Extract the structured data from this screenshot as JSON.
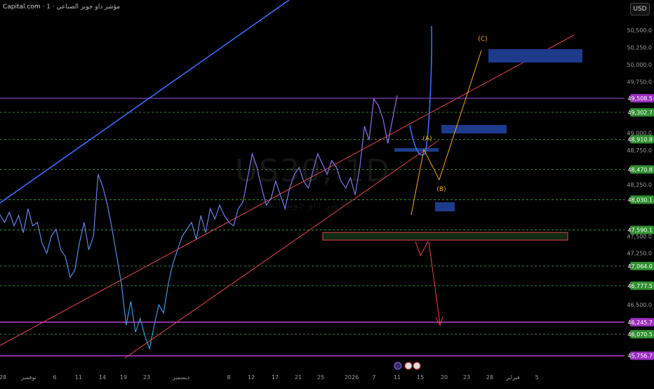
{
  "header": {
    "brand": "Capital.com",
    "subtitle": "1 · مؤشر داو جونز الصناعي"
  },
  "currency_button": "USD",
  "watermark": {
    "symbol": "US30, 1D",
    "name": "مؤشر داو جونز الصناعي"
  },
  "colors": {
    "background": "#000000",
    "price_line": "#7b6cf0",
    "channel_red": "#e0454e",
    "trend_blue": "#3d6bff",
    "wave_orange": "#f5a623",
    "zone_blue": "#1e3a8a",
    "guide_green": "#3fa63f",
    "level_purple": "#b03cc8"
  },
  "chart_data": {
    "type": "line",
    "title": "",
    "xlabel": "",
    "ylabel": "",
    "ylim": [
      45650,
      50750
    ],
    "grid": false,
    "legend": "none",
    "x_tick_labels": [
      "28",
      "نوفمبر",
      "6",
      "11",
      "14",
      "19",
      "23",
      "ديسمبر",
      "8",
      "12",
      "17",
      "21",
      "25",
      "2026",
      "7",
      "11",
      "15",
      "20",
      "23",
      "28",
      "فبراير",
      "5"
    ],
    "y_tick_labels": [
      "50,500.0",
      "50,250.0",
      "50,000.0",
      "49,750.0",
      "49,000.0",
      "48,750.0",
      "48,250.0",
      "47,500.0",
      "47,250.0",
      "46,500.0"
    ],
    "price_labels": [
      {
        "value": 49508.5,
        "text": "49,508.5",
        "kind": "purple"
      },
      {
        "value": 49302.7,
        "text": "49,302.7",
        "kind": "green"
      },
      {
        "value": 48910.8,
        "text": "48,910.8",
        "kind": "green"
      },
      {
        "value": 48470.8,
        "text": "48,470.8",
        "kind": "green"
      },
      {
        "value": 48030.1,
        "text": "48,030.1",
        "kind": "green"
      },
      {
        "value": 47590.1,
        "text": "47,590.1",
        "kind": "green"
      },
      {
        "value": 47064.0,
        "text": "47,064.0",
        "kind": "green"
      },
      {
        "value": 46777.5,
        "text": "46,777.5",
        "kind": "green"
      },
      {
        "value": 46245.7,
        "text": "46,245.7",
        "kind": "purple"
      },
      {
        "value": 46070.5,
        "text": "46,070.5",
        "kind": "green"
      },
      {
        "value": 45756.7,
        "text": "45,756.7",
        "kind": "purple"
      }
    ],
    "series": [
      {
        "values": [
          47810,
          47700,
          47850,
          47650,
          47800,
          47550,
          47900,
          47650,
          47700,
          47400,
          47250,
          47500,
          47600,
          47300,
          47200,
          46900,
          47000,
          47400,
          47700,
          47300,
          47500,
          48400,
          48220,
          47950,
          47600,
          47200,
          46800,
          46200,
          46550,
          46100,
          46300,
          46050,
          45860,
          46200,
          46500,
          46380,
          46800,
          47100,
          47300,
          47500,
          47600,
          47700,
          47450,
          47800,
          47550,
          47900,
          47750,
          47950,
          47800,
          47700,
          47650,
          47900,
          48000,
          48350,
          48700,
          48500,
          48200,
          47950,
          48050,
          48300,
          48100,
          47900,
          48200,
          48400,
          48500,
          48300,
          48200,
          48450,
          48700,
          48550,
          48400,
          48600,
          48500,
          48300,
          48200,
          48350,
          48100,
          48500,
          49100,
          48900,
          49500,
          49400,
          49200,
          48850,
          49200,
          49550
        ]
      }
    ],
    "annotations": [
      "(A)",
      "(B)",
      "(C)"
    ]
  }
}
